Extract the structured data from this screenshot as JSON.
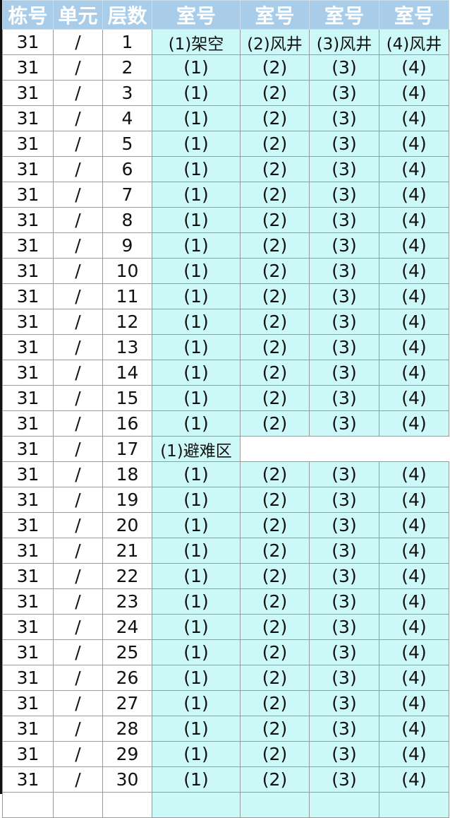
{
  "header": [
    "栋号",
    "单元",
    "层数",
    "室号",
    "室号",
    "室号",
    "室号"
  ],
  "colors": {
    "header_bg": "#a9cde8",
    "room_bg": "#ccf8f8"
  },
  "rows": [
    {
      "building": "31",
      "unit": "/",
      "floor": "1",
      "rooms": [
        "(1)架空",
        "(2)风井",
        "(3)风井",
        "(4)风井"
      ]
    },
    {
      "building": "31",
      "unit": "/",
      "floor": "2",
      "rooms": [
        "(1)",
        "(2)",
        "(3)",
        "(4)"
      ]
    },
    {
      "building": "31",
      "unit": "/",
      "floor": "3",
      "rooms": [
        "(1)",
        "(2)",
        "(3)",
        "(4)"
      ]
    },
    {
      "building": "31",
      "unit": "/",
      "floor": "4",
      "rooms": [
        "(1)",
        "(2)",
        "(3)",
        "(4)"
      ]
    },
    {
      "building": "31",
      "unit": "/",
      "floor": "5",
      "rooms": [
        "(1)",
        "(2)",
        "(3)",
        "(4)"
      ]
    },
    {
      "building": "31",
      "unit": "/",
      "floor": "6",
      "rooms": [
        "(1)",
        "(2)",
        "(3)",
        "(4)"
      ]
    },
    {
      "building": "31",
      "unit": "/",
      "floor": "7",
      "rooms": [
        "(1)",
        "(2)",
        "(3)",
        "(4)"
      ]
    },
    {
      "building": "31",
      "unit": "/",
      "floor": "8",
      "rooms": [
        "(1)",
        "(2)",
        "(3)",
        "(4)"
      ]
    },
    {
      "building": "31",
      "unit": "/",
      "floor": "9",
      "rooms": [
        "(1)",
        "(2)",
        "(3)",
        "(4)"
      ]
    },
    {
      "building": "31",
      "unit": "/",
      "floor": "10",
      "rooms": [
        "(1)",
        "(2)",
        "(3)",
        "(4)"
      ]
    },
    {
      "building": "31",
      "unit": "/",
      "floor": "11",
      "rooms": [
        "(1)",
        "(2)",
        "(3)",
        "(4)"
      ]
    },
    {
      "building": "31",
      "unit": "/",
      "floor": "12",
      "rooms": [
        "(1)",
        "(2)",
        "(3)",
        "(4)"
      ]
    },
    {
      "building": "31",
      "unit": "/",
      "floor": "13",
      "rooms": [
        "(1)",
        "(2)",
        "(3)",
        "(4)"
      ]
    },
    {
      "building": "31",
      "unit": "/",
      "floor": "14",
      "rooms": [
        "(1)",
        "(2)",
        "(3)",
        "(4)"
      ]
    },
    {
      "building": "31",
      "unit": "/",
      "floor": "15",
      "rooms": [
        "(1)",
        "(2)",
        "(3)",
        "(4)"
      ]
    },
    {
      "building": "31",
      "unit": "/",
      "floor": "16",
      "rooms": [
        "(1)",
        "(2)",
        "(3)",
        "(4)"
      ]
    },
    {
      "building": "31",
      "unit": "/",
      "floor": "17",
      "rooms": [
        "(1)避难区"
      ]
    },
    {
      "building": "31",
      "unit": "/",
      "floor": "18",
      "rooms": [
        "(1)",
        "(2)",
        "(3)",
        "(4)"
      ]
    },
    {
      "building": "31",
      "unit": "/",
      "floor": "19",
      "rooms": [
        "(1)",
        "(2)",
        "(3)",
        "(4)"
      ]
    },
    {
      "building": "31",
      "unit": "/",
      "floor": "20",
      "rooms": [
        "(1)",
        "(2)",
        "(3)",
        "(4)"
      ]
    },
    {
      "building": "31",
      "unit": "/",
      "floor": "21",
      "rooms": [
        "(1)",
        "(2)",
        "(3)",
        "(4)"
      ]
    },
    {
      "building": "31",
      "unit": "/",
      "floor": "22",
      "rooms": [
        "(1)",
        "(2)",
        "(3)",
        "(4)"
      ]
    },
    {
      "building": "31",
      "unit": "/",
      "floor": "23",
      "rooms": [
        "(1)",
        "(2)",
        "(3)",
        "(4)"
      ]
    },
    {
      "building": "31",
      "unit": "/",
      "floor": "24",
      "rooms": [
        "(1)",
        "(2)",
        "(3)",
        "(4)"
      ]
    },
    {
      "building": "31",
      "unit": "/",
      "floor": "25",
      "rooms": [
        "(1)",
        "(2)",
        "(3)",
        "(4)"
      ]
    },
    {
      "building": "31",
      "unit": "/",
      "floor": "26",
      "rooms": [
        "(1)",
        "(2)",
        "(3)",
        "(4)"
      ]
    },
    {
      "building": "31",
      "unit": "/",
      "floor": "27",
      "rooms": [
        "(1)",
        "(2)",
        "(3)",
        "(4)"
      ]
    },
    {
      "building": "31",
      "unit": "/",
      "floor": "28",
      "rooms": [
        "(1)",
        "(2)",
        "(3)",
        "(4)"
      ]
    },
    {
      "building": "31",
      "unit": "/",
      "floor": "29",
      "rooms": [
        "(1)",
        "(2)",
        "(3)",
        "(4)"
      ]
    },
    {
      "building": "31",
      "unit": "/",
      "floor": "30",
      "rooms": [
        "(1)",
        "(2)",
        "(3)",
        "(4)"
      ]
    }
  ]
}
